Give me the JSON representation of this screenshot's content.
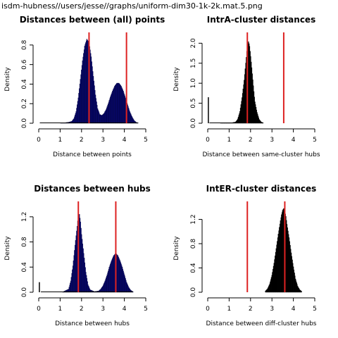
{
  "page_title": "isdm-hubness//users/jesse//graphs/uniform-dim30-1k-2k.mat.5.png",
  "chart_data": [
    {
      "type": "histogram",
      "title": "Distances between (all) points",
      "xlabel": "Distance between points",
      "ylabel": "Density",
      "xlim": [
        0,
        5
      ],
      "ylim": [
        0,
        0.9
      ],
      "xticks": [
        "0",
        "1",
        "2",
        "3",
        "4",
        "5"
      ],
      "yticks": [
        "0.0",
        "0.2",
        "0.4",
        "0.6",
        "0.8"
      ],
      "ytick_values": [
        0,
        0.2,
        0.4,
        0.6,
        0.8
      ],
      "bar_color": "#0a0a7a",
      "vlines": [
        2.35,
        4.1
      ],
      "vline_color": "#dd2222",
      "bins": [
        [
          0.05,
          0.0
        ],
        [
          0.5,
          0.0
        ],
        [
          1.0,
          0.0
        ],
        [
          1.4,
          0.01
        ],
        [
          1.55,
          0.02
        ],
        [
          1.65,
          0.05
        ],
        [
          1.75,
          0.12
        ],
        [
          1.85,
          0.26
        ],
        [
          1.95,
          0.45
        ],
        [
          2.05,
          0.64
        ],
        [
          2.15,
          0.79
        ],
        [
          2.25,
          0.86
        ],
        [
          2.35,
          0.82
        ],
        [
          2.45,
          0.68
        ],
        [
          2.55,
          0.48
        ],
        [
          2.65,
          0.29
        ],
        [
          2.75,
          0.15
        ],
        [
          2.85,
          0.09
        ],
        [
          2.95,
          0.08
        ],
        [
          3.05,
          0.1
        ],
        [
          3.15,
          0.14
        ],
        [
          3.25,
          0.2
        ],
        [
          3.35,
          0.27
        ],
        [
          3.45,
          0.33
        ],
        [
          3.55,
          0.38
        ],
        [
          3.65,
          0.41
        ],
        [
          3.75,
          0.41
        ],
        [
          3.85,
          0.38
        ],
        [
          3.95,
          0.33
        ],
        [
          4.05,
          0.26
        ],
        [
          4.15,
          0.19
        ],
        [
          4.25,
          0.12
        ],
        [
          4.35,
          0.07
        ],
        [
          4.45,
          0.03
        ],
        [
          4.55,
          0.01
        ],
        [
          4.65,
          0.0
        ]
      ]
    },
    {
      "type": "histogram",
      "title": "IntrA-cluster distances",
      "xlabel": "Distance between same-cluster hubs",
      "ylabel": "Density",
      "xlim": [
        0,
        5
      ],
      "ylim": [
        0,
        2.2
      ],
      "xticks": [
        "0",
        "1",
        "2",
        "3",
        "4",
        "5"
      ],
      "yticks": [
        "0.0",
        "0.5",
        "1.0",
        "1.5",
        "2.0"
      ],
      "ytick_values": [
        0,
        0.5,
        1.0,
        1.5,
        2.0
      ],
      "bar_color": "#000000",
      "vlines": [
        1.85,
        3.55
      ],
      "vline_color": "#dd2222",
      "spike": [
        0.03,
        0.65
      ],
      "bins": [
        [
          0.08,
          0.0
        ],
        [
          0.6,
          0.0
        ],
        [
          1.1,
          0.01
        ],
        [
          1.3,
          0.03
        ],
        [
          1.4,
          0.1
        ],
        [
          1.5,
          0.28
        ],
        [
          1.6,
          0.62
        ],
        [
          1.7,
          1.05
        ],
        [
          1.8,
          1.62
        ],
        [
          1.85,
          1.92
        ],
        [
          1.9,
          2.05
        ],
        [
          1.95,
          1.95
        ],
        [
          2.0,
          1.7
        ],
        [
          2.05,
          1.42
        ],
        [
          2.1,
          1.12
        ],
        [
          2.15,
          0.82
        ],
        [
          2.2,
          0.55
        ],
        [
          2.3,
          0.28
        ],
        [
          2.4,
          0.1
        ],
        [
          2.5,
          0.03
        ],
        [
          2.6,
          0.01
        ]
      ]
    },
    {
      "type": "histogram",
      "title": "Distances between hubs",
      "xlabel": "Distance between hubs",
      "ylabel": "Density",
      "xlim": [
        0,
        5
      ],
      "ylim": [
        0,
        1.4
      ],
      "xticks": [
        "0",
        "1",
        "2",
        "3",
        "4",
        "5"
      ],
      "yticks": [
        "0.0",
        "0.4",
        "0.8",
        "1.2"
      ],
      "ytick_values": [
        0,
        0.4,
        0.8,
        1.2
      ],
      "bar_color": "#0a0a7a",
      "vlines": [
        1.85,
        3.6
      ],
      "vline_color": "#dd2222",
      "spike": [
        0.03,
        0.16
      ],
      "bins": [
        [
          0.1,
          0.0
        ],
        [
          0.6,
          0.0
        ],
        [
          1.1,
          0.0
        ],
        [
          1.4,
          0.05
        ],
        [
          1.5,
          0.18
        ],
        [
          1.6,
          0.42
        ],
        [
          1.7,
          0.75
        ],
        [
          1.8,
          1.05
        ],
        [
          1.85,
          1.22
        ],
        [
          1.9,
          1.24
        ],
        [
          1.95,
          1.12
        ],
        [
          2.0,
          0.92
        ],
        [
          2.1,
          0.62
        ],
        [
          2.2,
          0.32
        ],
        [
          2.3,
          0.12
        ],
        [
          2.4,
          0.04
        ],
        [
          2.6,
          0.01
        ],
        [
          2.8,
          0.02
        ],
        [
          2.9,
          0.05
        ],
        [
          3.0,
          0.1
        ],
        [
          3.1,
          0.18
        ],
        [
          3.2,
          0.28
        ],
        [
          3.3,
          0.4
        ],
        [
          3.4,
          0.5
        ],
        [
          3.5,
          0.58
        ],
        [
          3.6,
          0.62
        ],
        [
          3.7,
          0.58
        ],
        [
          3.8,
          0.5
        ],
        [
          3.9,
          0.4
        ],
        [
          4.0,
          0.28
        ],
        [
          4.1,
          0.16
        ],
        [
          4.2,
          0.08
        ],
        [
          4.3,
          0.03
        ],
        [
          4.4,
          0.01
        ]
      ]
    },
    {
      "type": "histogram",
      "title": "IntER-cluster distances",
      "xlabel": "Distance between diff-cluster hubs",
      "ylabel": "Density",
      "xlim": [
        0,
        5
      ],
      "ylim": [
        0,
        1.45
      ],
      "xticks": [
        "0",
        "1",
        "2",
        "3",
        "4",
        "5"
      ],
      "yticks": [
        "0.0",
        "0.4",
        "0.8",
        "1.2"
      ],
      "ytick_values": [
        0,
        0.4,
        0.8,
        1.2
      ],
      "bar_color": "#000000",
      "vlines": [
        1.85,
        3.6
      ],
      "vline_color": "#dd2222",
      "bins": [
        [
          2.7,
          0.02
        ],
        [
          2.8,
          0.06
        ],
        [
          2.9,
          0.14
        ],
        [
          3.0,
          0.28
        ],
        [
          3.1,
          0.48
        ],
        [
          3.2,
          0.72
        ],
        [
          3.3,
          0.96
        ],
        [
          3.4,
          1.18
        ],
        [
          3.45,
          1.28
        ],
        [
          3.5,
          1.35
        ],
        [
          3.55,
          1.38
        ],
        [
          3.6,
          1.33
        ],
        [
          3.65,
          1.25
        ],
        [
          3.7,
          1.12
        ],
        [
          3.8,
          0.9
        ],
        [
          3.9,
          0.65
        ],
        [
          4.0,
          0.42
        ],
        [
          4.1,
          0.22
        ],
        [
          4.2,
          0.1
        ],
        [
          4.3,
          0.04
        ],
        [
          4.4,
          0.01
        ]
      ]
    }
  ]
}
